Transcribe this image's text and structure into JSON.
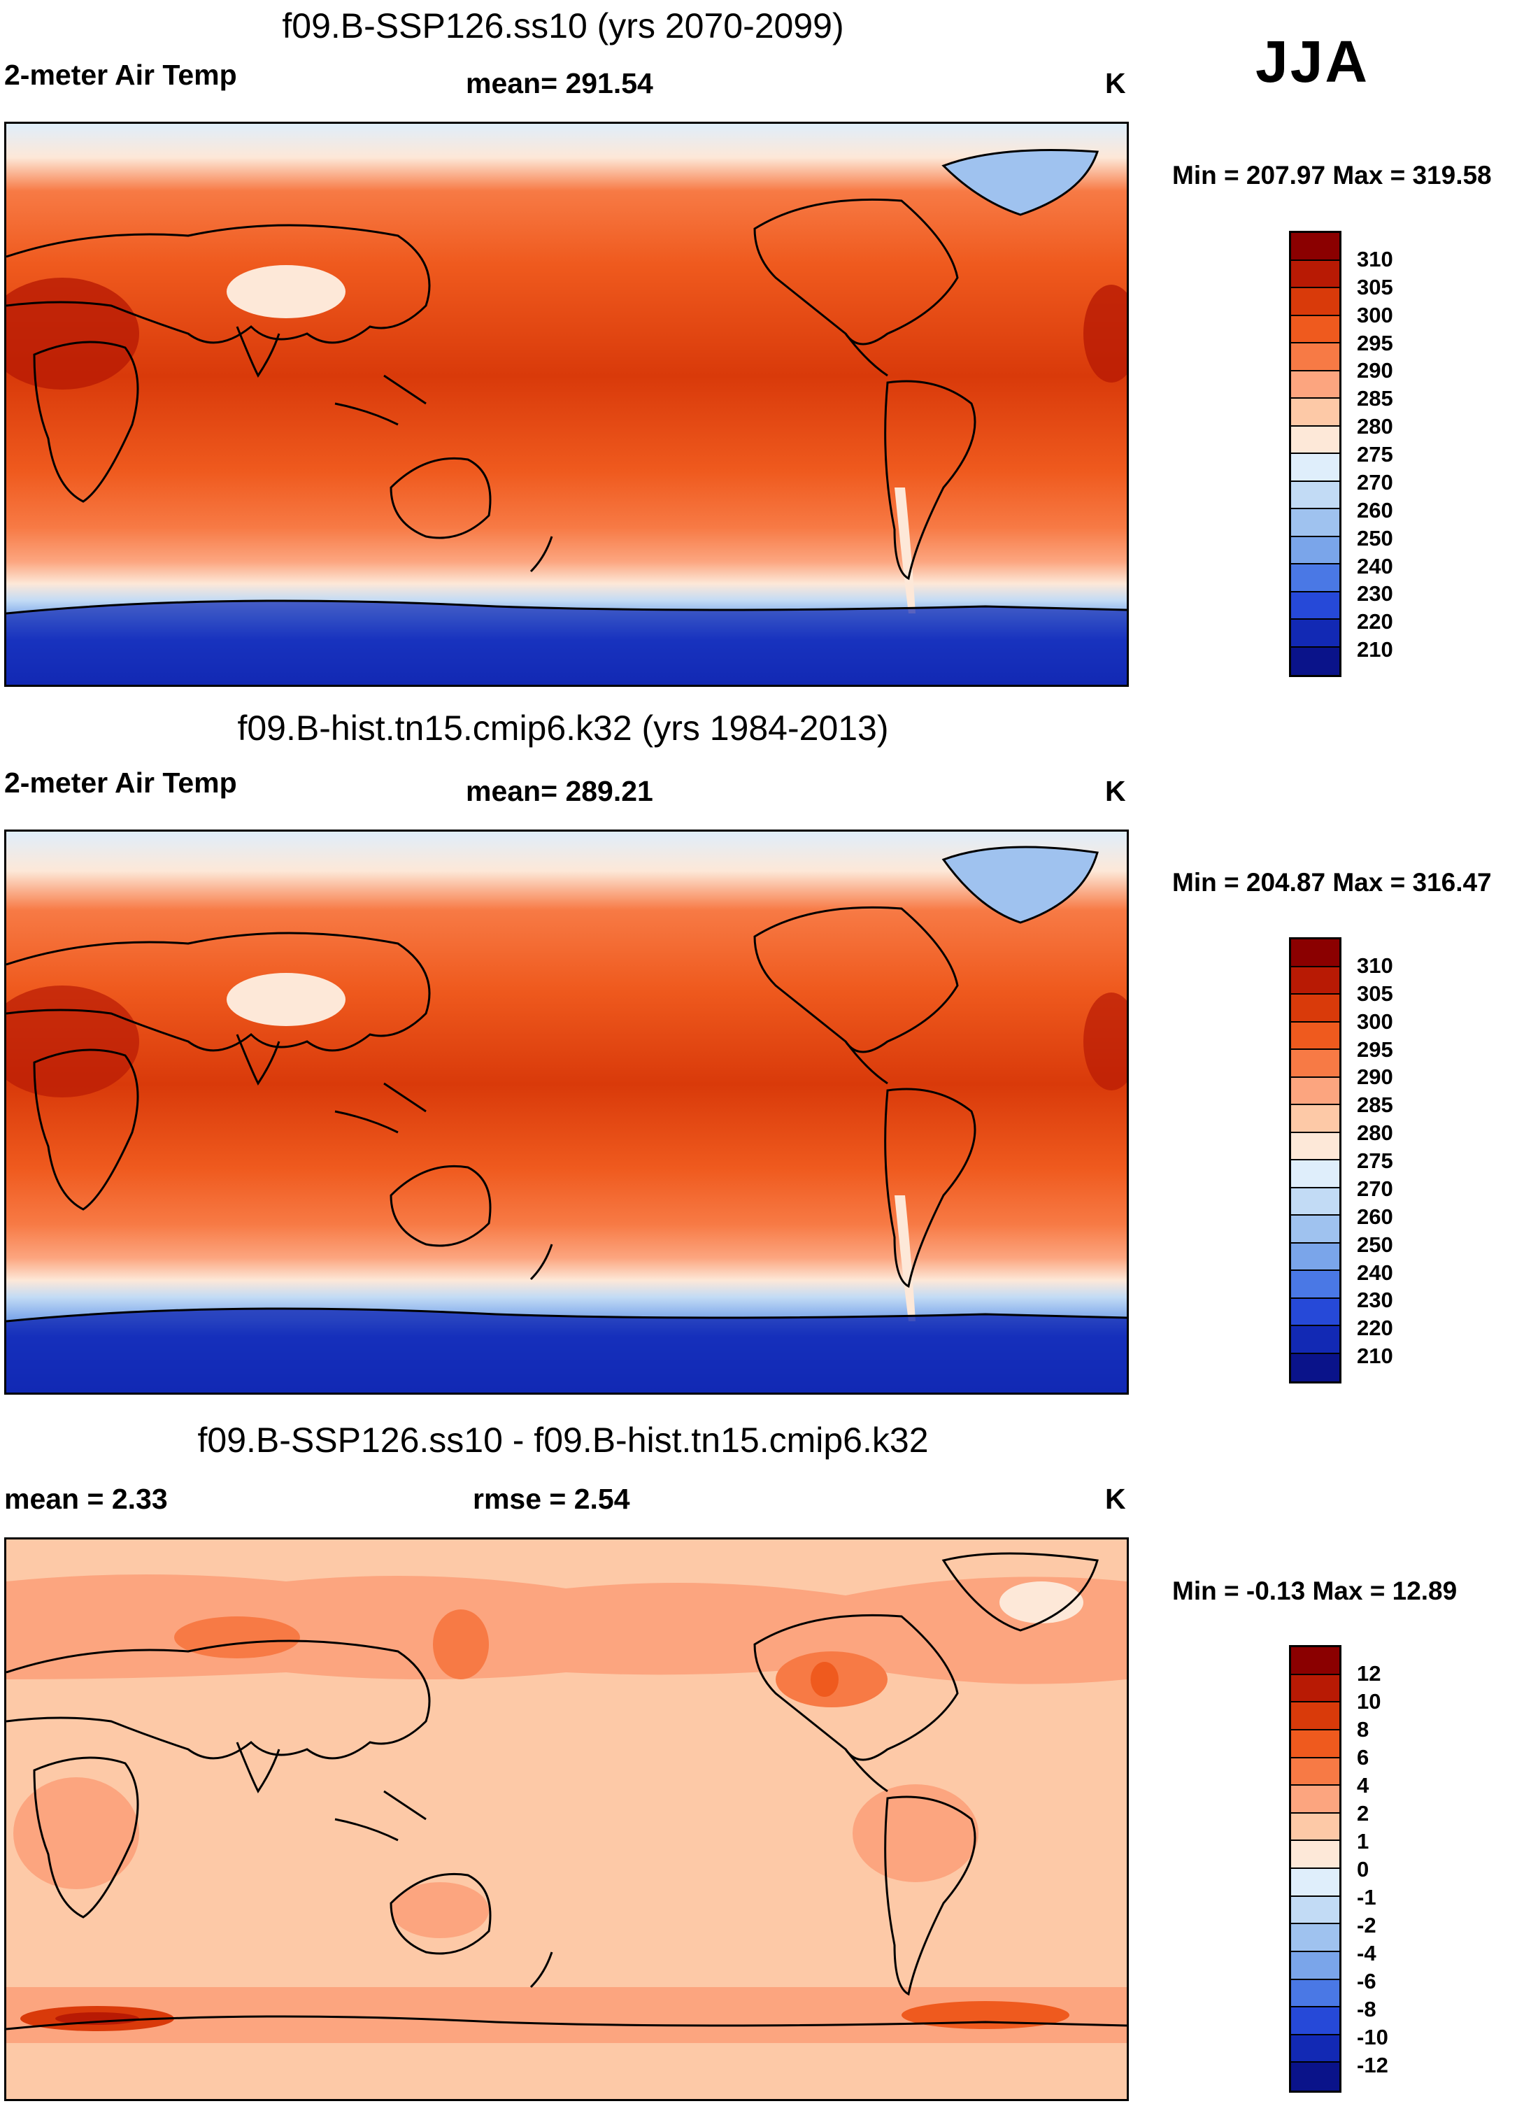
{
  "season": "JJA",
  "panels": [
    {
      "title": "f09.B-SSP126.ss10 (yrs 2070-2099)",
      "left_label": "2-meter Air Temp",
      "center_label": "mean= 291.54",
      "units": "K",
      "minmax": "Min = 207.97 Max = 319.58",
      "map_kind": "absolute"
    },
    {
      "title": "f09.B-hist.tn15.cmip6.k32 (yrs 1984-2013)",
      "left_label": "2-meter Air Temp",
      "center_label": "mean= 289.21",
      "units": "K",
      "minmax": "Min = 204.87 Max = 316.47",
      "map_kind": "absolute"
    },
    {
      "title": "f09.B-SSP126.ss10 - f09.B-hist.tn15.cmip6.k32",
      "left_label": "mean =   2.33",
      "center_label": "rmse =   2.54",
      "units": "K",
      "minmax": "Min =  -0.13 Max =  12.89",
      "map_kind": "difference"
    }
  ],
  "colorbars": {
    "absolute": {
      "levels": [
        "310",
        "305",
        "300",
        "295",
        "290",
        "285",
        "280",
        "275",
        "270",
        "260",
        "250",
        "240",
        "230",
        "220",
        "210"
      ],
      "colors": [
        "#8b0000",
        "#b81a04",
        "#d93a0a",
        "#ef5a1e",
        "#f77a45",
        "#fca57f",
        "#fdc9a7",
        "#fde8d8",
        "#dfeefb",
        "#c2dbf5",
        "#9fc2ef",
        "#7aa5ea",
        "#4a78e5",
        "#2649d8",
        "#1229b4",
        "#0a138a"
      ]
    },
    "difference": {
      "levels": [
        "12",
        "10",
        "8",
        "6",
        "4",
        "2",
        "1",
        "0",
        "-1",
        "-2",
        "-4",
        "-6",
        "-8",
        "-10",
        "-12"
      ],
      "colors": [
        "#8b0000",
        "#b81a04",
        "#d93a0a",
        "#ef5a1e",
        "#f77a45",
        "#fca57f",
        "#fdc9a7",
        "#fde8d8",
        "#dfeefb",
        "#c2dbf5",
        "#9fc2ef",
        "#7aa5ea",
        "#4a78e5",
        "#2649d8",
        "#1229b4",
        "#0a138a"
      ]
    }
  }
}
